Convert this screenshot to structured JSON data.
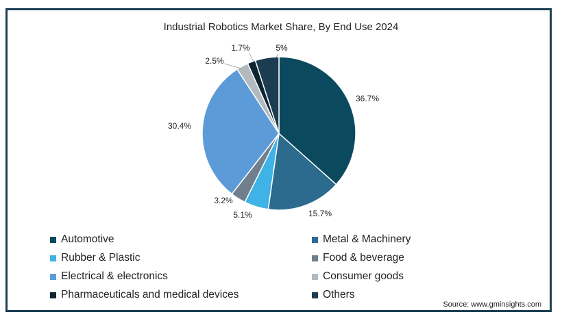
{
  "chart_data": {
    "type": "pie",
    "title": "Industrial Robotics Market Share, By End Use 2024",
    "slices": [
      {
        "name": "Automotive",
        "value": 36.7,
        "label": "36.7%",
        "color": "#0b4a5e"
      },
      {
        "name": "Metal & Machinery",
        "value": 15.7,
        "label": "15.7%",
        "color": "#2d6b8e"
      },
      {
        "name": "Rubber & Plastic",
        "value": 5.1,
        "label": "5.1%",
        "color": "#3fb2e6"
      },
      {
        "name": "Food & beverage",
        "value": 3.2,
        "label": "3.2%",
        "color": "#6f7f8e"
      },
      {
        "name": "Electrical & electronics",
        "value": 30.4,
        "label": "30.4%",
        "color": "#5d9bd8"
      },
      {
        "name": "Consumer goods",
        "value": 2.5,
        "label": "2.5%",
        "color": "#b2b9bf"
      },
      {
        "name": "Pharmaceuticals and medical devices",
        "value": 1.7,
        "label": "1.7%",
        "color": "#0d2530"
      },
      {
        "name": "Others",
        "value": 5,
        "label": "5%",
        "color": "#1c3c52"
      }
    ],
    "legend_position": "bottom"
  },
  "source": "Source: www.gminsights.com"
}
